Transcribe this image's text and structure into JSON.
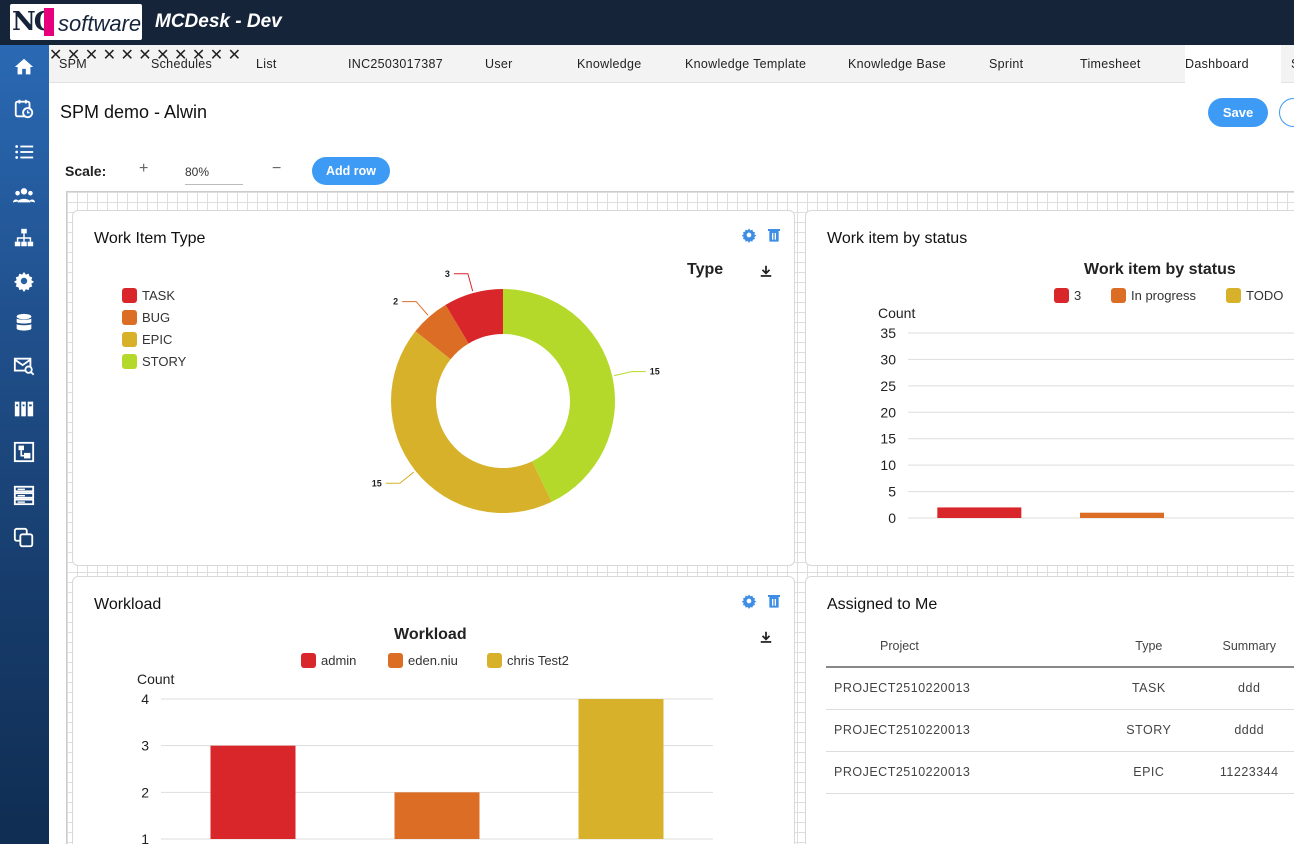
{
  "app": {
    "logo_text_nc": "NC",
    "logo_text_software": "software",
    "title": "MCDesk - Dev"
  },
  "sidebar": {
    "icons": [
      "home-icon",
      "calendar-clock-icon",
      "list-icon",
      "users-icon",
      "org-chart-icon",
      "gear-icon",
      "database-icon",
      "mail-search-icon",
      "library-icon",
      "network-box-icon",
      "server-icon",
      "copy-icon"
    ]
  },
  "tabs": [
    {
      "label": "SPM"
    },
    {
      "label": "Schedules"
    },
    {
      "label": "List"
    },
    {
      "label": "INC2503017387"
    },
    {
      "label": "User"
    },
    {
      "label": "Knowledge"
    },
    {
      "label": "Knowledge Template"
    },
    {
      "label": "Knowledge Base"
    },
    {
      "label": "Sprint"
    },
    {
      "label": "Timesheet"
    },
    {
      "label": "Dashboard"
    },
    {
      "label": "S"
    }
  ],
  "tab_close_glyph": "✕",
  "page": {
    "title": "SPM demo - Alwin",
    "save_label": "Save"
  },
  "scale": {
    "label": "Scale:",
    "plus": "+",
    "value": "80%",
    "minus": "−",
    "add_row_label": "Add row"
  },
  "widgets": {
    "work_item_type": {
      "card_title": "Work Item Type",
      "chart_title": "Type"
    },
    "work_item_status": {
      "card_title": "Work item by status",
      "chart_title": "Work item by status",
      "y_axis_label": "Count"
    },
    "workload": {
      "card_title": "Workload",
      "chart_title": "Workload",
      "y_axis_label": "Count"
    },
    "assigned": {
      "card_title": "Assigned to Me",
      "columns": [
        "Project",
        "Type",
        "Summary"
      ],
      "rows": [
        [
          "PROJECT2510220013",
          "TASK",
          "ddd"
        ],
        [
          "PROJECT2510220013",
          "STORY",
          "dddd"
        ],
        [
          "PROJECT2510220013",
          "EPIC",
          "11223344"
        ]
      ]
    }
  },
  "colors": {
    "accent": "#3e9bf5",
    "task": "#d9262a",
    "bug": "#dc6d25",
    "epic": "#d8b12a",
    "story": "#b5d92a"
  },
  "chart_data": [
    {
      "type": "pie",
      "title": "Type",
      "categories": [
        "TASK",
        "BUG",
        "EPIC",
        "STORY"
      ],
      "values": [
        3,
        2,
        15,
        15
      ],
      "colors": [
        "#d9262a",
        "#dc6d25",
        "#d8b12a",
        "#b5d92a"
      ],
      "donut": true,
      "legend": "left"
    },
    {
      "type": "bar",
      "title": "Work item by status",
      "categories": [
        "3",
        "In progress",
        "TODO"
      ],
      "values": [
        2,
        1,
        0
      ],
      "colors": [
        "#d9262a",
        "#dc6d25",
        "#d8b12a"
      ],
      "ylabel": "Count",
      "yticks": [
        0,
        5,
        10,
        15,
        20,
        25,
        30,
        35
      ],
      "ylim": [
        0,
        35
      ],
      "legend": "top",
      "grid": true
    },
    {
      "type": "bar",
      "title": "Workload",
      "categories": [
        "admin",
        "eden.niu",
        "chris Test2"
      ],
      "values": [
        3,
        2,
        4
      ],
      "colors": [
        "#d9262a",
        "#dc6d25",
        "#d8b12a"
      ],
      "ylabel": "Count",
      "yticks": [
        1,
        2,
        3,
        4
      ],
      "ylim": [
        1,
        4
      ],
      "legend": "top",
      "grid": true
    }
  ]
}
